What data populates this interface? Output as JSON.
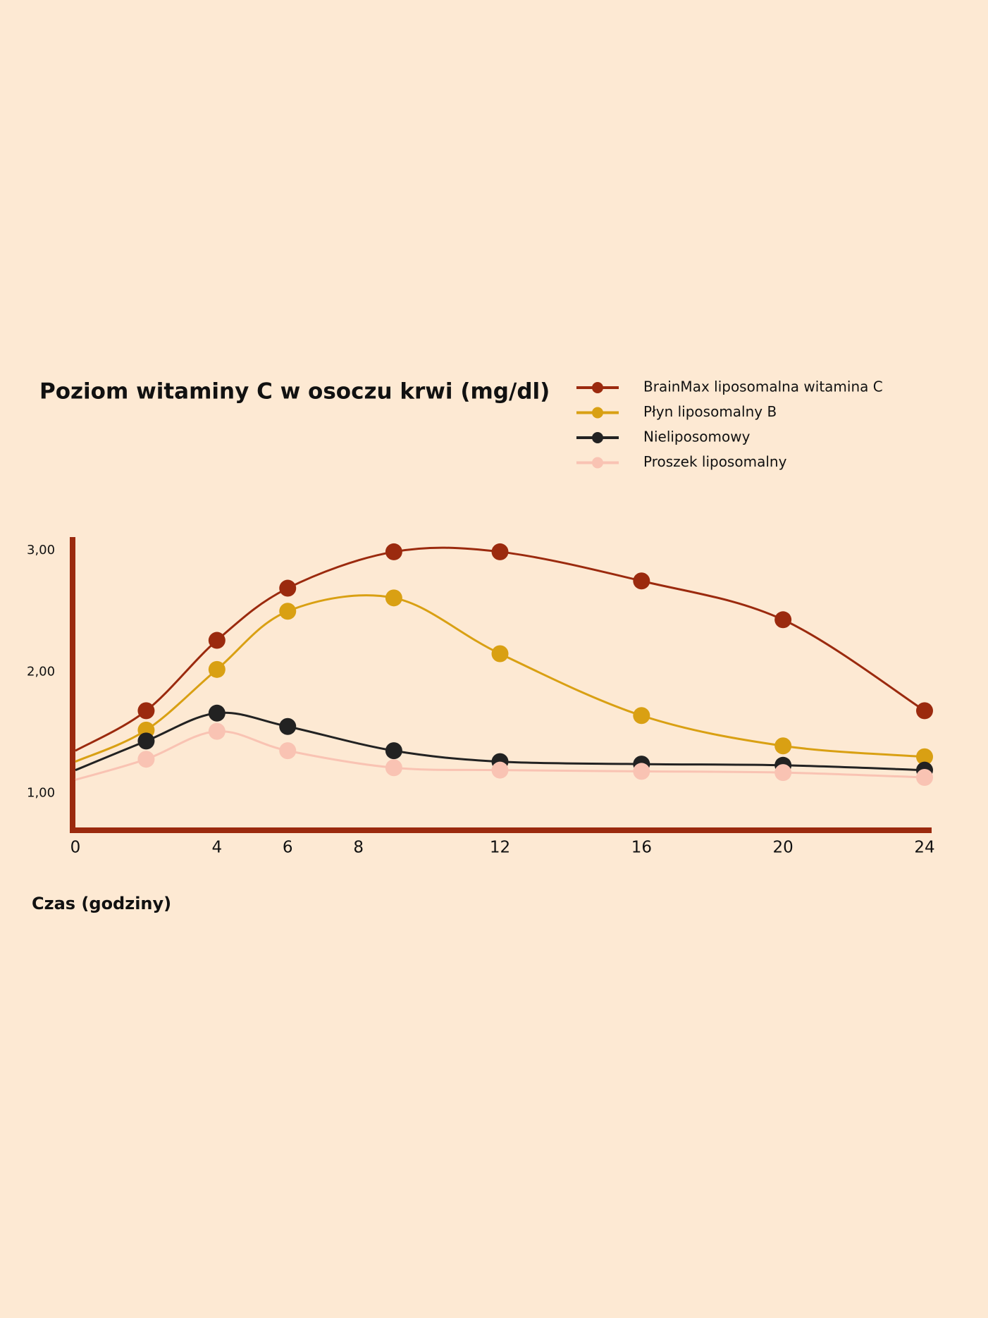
{
  "chart_data": {
    "type": "line",
    "title": "Poziom witaminy C w osoczu krwi (mg/dl)",
    "x_label": "Czas (godziny)",
    "x": [
      0,
      2,
      4,
      6,
      9,
      12,
      16,
      20,
      24
    ],
    "xlim": [
      0,
      24
    ],
    "xticks": [
      0,
      4,
      6,
      8,
      12,
      16,
      20,
      24
    ],
    "ylim": [
      0.7,
      3.1
    ],
    "yticks": [
      {
        "value": 1,
        "label": "1,00"
      },
      {
        "value": 2,
        "label": "2,00"
      },
      {
        "value": 3,
        "label": "3,00"
      }
    ],
    "axis_color": "#9b2a0e",
    "series": [
      {
        "name": "BrainMax liposomalna witamina C",
        "color": "#9b2a0e",
        "values": [
          1.35,
          1.68,
          2.26,
          2.69,
          2.99,
          2.99,
          2.75,
          2.43,
          1.68
        ]
      },
      {
        "name": "Płyn liposomalny B",
        "color": "#d9a013",
        "values": [
          1.26,
          1.52,
          2.02,
          2.5,
          2.61,
          2.15,
          1.64,
          1.39,
          1.3
        ]
      },
      {
        "name": "Nieliposomowy",
        "color": "#222222",
        "values": [
          1.19,
          1.43,
          1.66,
          1.55,
          1.35,
          1.26,
          1.24,
          1.23,
          1.19
        ]
      },
      {
        "name": "Proszek liposomalny",
        "color": "#f9c3b3",
        "values": [
          1.11,
          1.28,
          1.51,
          1.35,
          1.21,
          1.19,
          1.18,
          1.17,
          1.13
        ]
      }
    ]
  }
}
